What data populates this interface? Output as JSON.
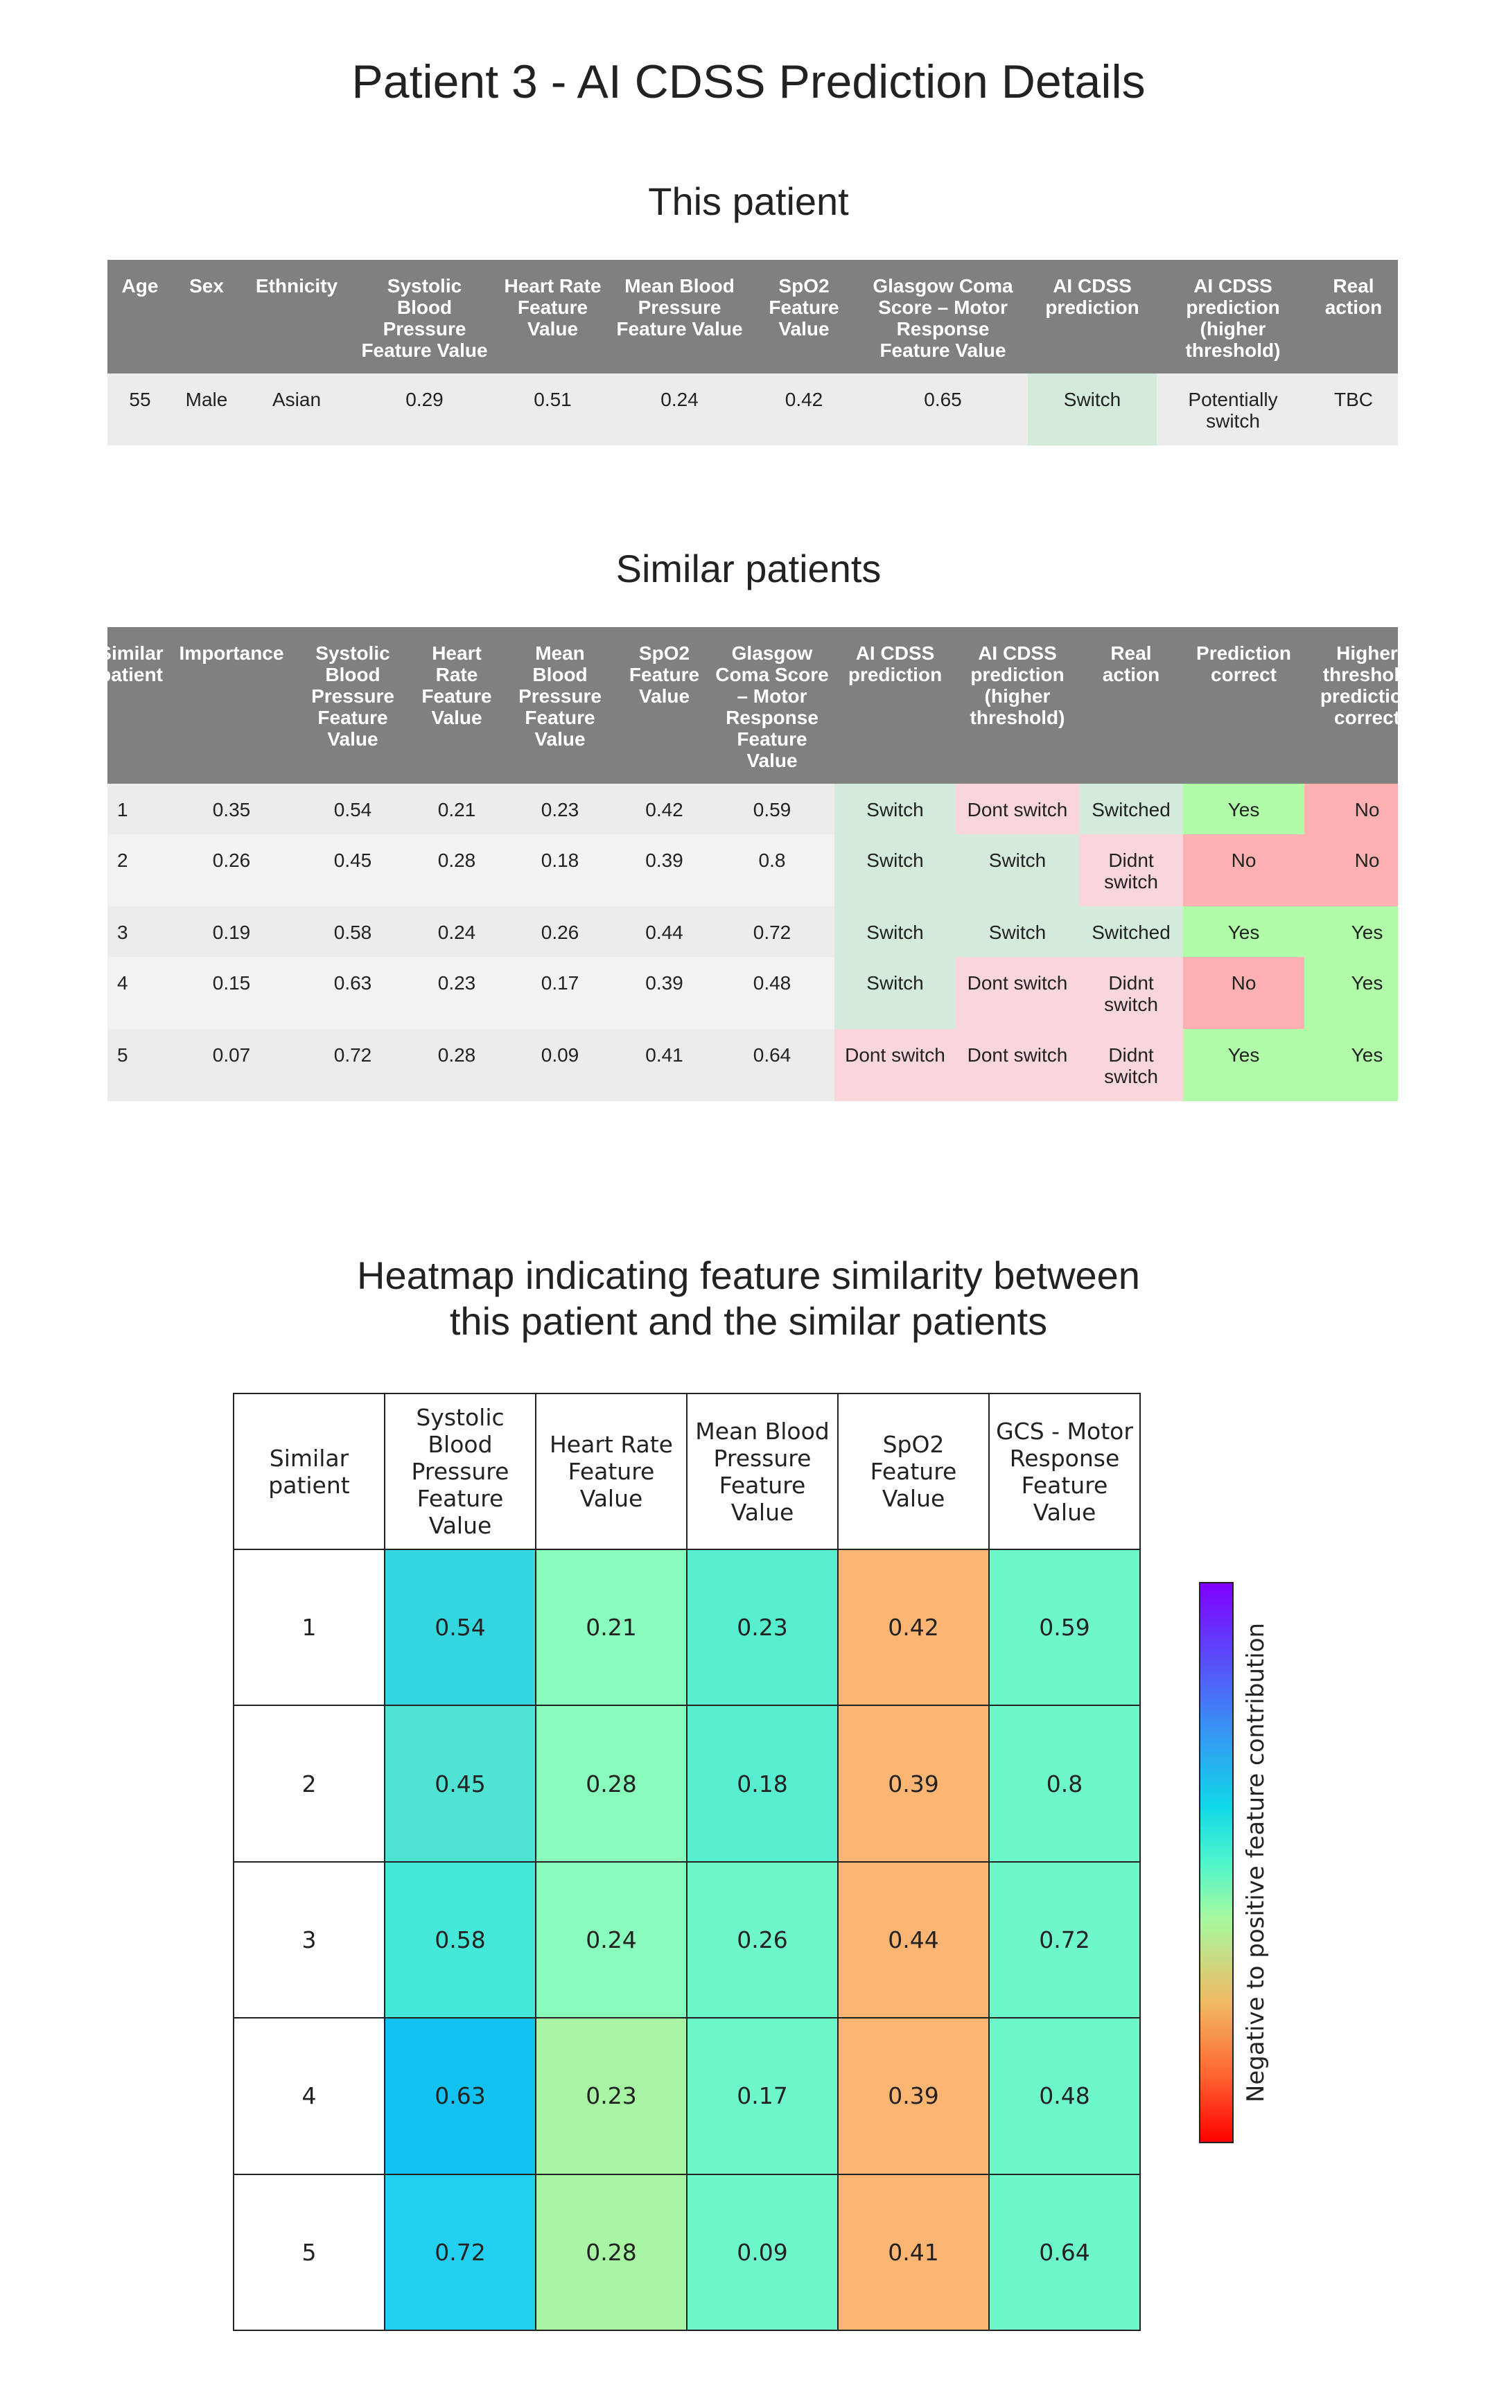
{
  "page_title": "Patient 3 - AI CDSS Prediction Details",
  "this_patient": {
    "heading": "This patient",
    "headers": [
      "Age",
      "Sex",
      "Ethnicity",
      "Systolic Blood Pressure Feature Value",
      "Heart Rate Feature Value",
      "Mean Blood Pressure Feature Value",
      "SpO2 Feature Value",
      "Glasgow Coma Score – Motor Response Feature Value",
      "AI CDSS prediction",
      "AI CDSS prediction (higher threshold)",
      "Real action"
    ],
    "row": [
      "55",
      "Male",
      "Asian",
      "0.29",
      "0.51",
      "0.24",
      "0.42",
      "0.65",
      "Switch",
      "Potentially switch",
      "TBC"
    ]
  },
  "similar_patients": {
    "heading": "Similar patients",
    "headers": [
      "Similar patient",
      "Importance",
      "Systolic Blood Pressure Feature Value",
      "Heart Rate Feature Value",
      "Mean Blood Pressure Feature Value",
      "SpO2 Feature Value",
      "Glasgow Coma Score – Motor Response Feature Value",
      "AI CDSS prediction",
      "AI CDSS prediction (higher threshold)",
      "Real action",
      "Prediction correct",
      "Higher threshold prediction correct"
    ],
    "rows": [
      [
        "1",
        "0.35",
        "0.54",
        "0.21",
        "0.23",
        "0.42",
        "0.59",
        "Switch",
        "Dont switch",
        "Switched",
        "Yes",
        "No"
      ],
      [
        "2",
        "0.26",
        "0.45",
        "0.28",
        "0.18",
        "0.39",
        "0.8",
        "Switch",
        "Switch",
        "Didnt switch",
        "No",
        "No"
      ],
      [
        "3",
        "0.19",
        "0.58",
        "0.24",
        "0.26",
        "0.44",
        "0.72",
        "Switch",
        "Switch",
        "Switched",
        "Yes",
        "Yes"
      ],
      [
        "4",
        "0.15",
        "0.63",
        "0.23",
        "0.17",
        "0.39",
        "0.48",
        "Switch",
        "Dont switch",
        "Didnt switch",
        "No",
        "Yes"
      ],
      [
        "5",
        "0.07",
        "0.72",
        "0.28",
        "0.09",
        "0.41",
        "0.64",
        "Dont switch",
        "Dont switch",
        "Didnt switch",
        "Yes",
        "Yes"
      ]
    ]
  },
  "heatmap": {
    "title_line1": "Heatmap indicating feature similarity between",
    "title_line2": "this patient and the similar patients",
    "colorbar_label": "Negative to positive feature contribution",
    "colors": {
      "sky": "#34d7e0",
      "aqua": "#4fe3d4",
      "teal": "#45e7d8",
      "deep_sky": "#12c3f2",
      "sky2": "#23d0ef",
      "mint": "#89fdbb",
      "mint2": "#7dfcbf",
      "lime": "#a8f6a3",
      "green": "#6ff7cc",
      "orange": "#fdb574"
    }
  },
  "chart_data": {
    "type": "heatmap",
    "title": "Heatmap indicating feature similarity between this patient and the similar patients",
    "columns": [
      "Similar patient",
      "Systolic Blood Pressure Feature Value",
      "Heart Rate Feature Value",
      "Mean Blood Pressure Feature Value",
      "SpO2 Feature Value",
      "GCS - Motor Response Feature Value"
    ],
    "rows": [
      "1",
      "2",
      "3",
      "4",
      "5"
    ],
    "values": [
      [
        0.54,
        0.21,
        0.23,
        0.42,
        0.59
      ],
      [
        0.45,
        0.28,
        0.18,
        0.39,
        0.8
      ],
      [
        0.58,
        0.24,
        0.26,
        0.44,
        0.72
      ],
      [
        0.63,
        0.23,
        0.17,
        0.39,
        0.48
      ],
      [
        0.72,
        0.28,
        0.09,
        0.41,
        0.64
      ]
    ],
    "cell_colors": [
      [
        "#34d7e0",
        "#89fdbb",
        "#57eecf",
        "#fdb574",
        "#6ff7cc"
      ],
      [
        "#4fe3d4",
        "#89fdbb",
        "#57eecf",
        "#fdb574",
        "#6ff7cc"
      ],
      [
        "#45e7d8",
        "#89fdbb",
        "#6ff7cc",
        "#fdb574",
        "#6ff7cc"
      ],
      [
        "#12c3f2",
        "#a8f6a3",
        "#6ff7cc",
        "#fdb574",
        "#6ff7cc"
      ],
      [
        "#23d0ef",
        "#a8f6a3",
        "#6ff7cc",
        "#fdb574",
        "#6ff7cc"
      ]
    ],
    "colorbar_label": "Negative to positive feature contribution",
    "colorbar_stops": [
      "#7f00ff",
      "#3b8df4",
      "#11d8e8",
      "#4ff5cc",
      "#a6f99f",
      "#efba63",
      "#ff6532",
      "#ff0000"
    ]
  }
}
